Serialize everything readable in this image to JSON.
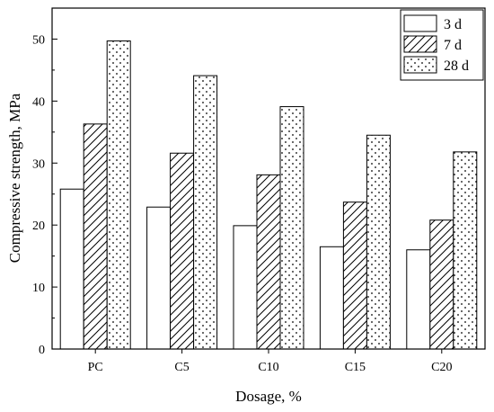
{
  "chart_data": {
    "type": "bar",
    "title": "",
    "xlabel": "Dosage, %",
    "ylabel": "Compressive strength, MPa",
    "categories": [
      "PC",
      "C5",
      "C10",
      "C15",
      "C20"
    ],
    "ylim": [
      0,
      55
    ],
    "yticks": [
      0,
      10,
      20,
      30,
      40,
      50
    ],
    "grid": false,
    "legend_position": "top-right",
    "series": [
      {
        "name": "3 d",
        "pattern": "blank",
        "values": [
          25.8,
          22.9,
          19.9,
          16.5,
          16.0
        ]
      },
      {
        "name": "7 d",
        "pattern": "hatch",
        "values": [
          36.3,
          31.6,
          28.1,
          23.7,
          20.8
        ]
      },
      {
        "name": "28 d",
        "pattern": "dots",
        "values": [
          49.7,
          44.1,
          39.1,
          34.5,
          31.8
        ]
      }
    ]
  }
}
